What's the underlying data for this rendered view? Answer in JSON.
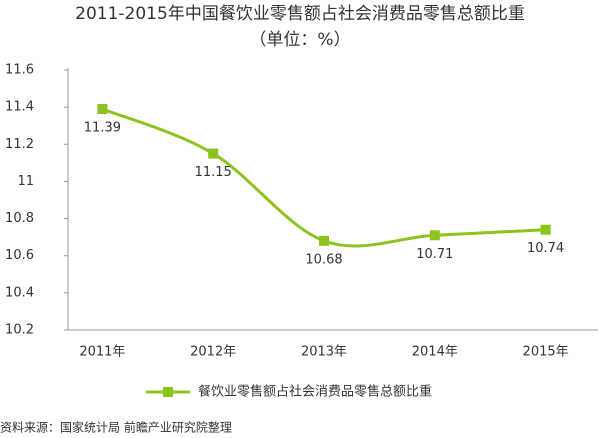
{
  "chart_data": {
    "type": "line",
    "title": "2011-2015年中国餐饮业零售额占社会消费品零售总额比重",
    "subtitle": "（单位：%）",
    "categories": [
      "2011年",
      "2012年",
      "2013年",
      "2014年",
      "2015年"
    ],
    "series": [
      {
        "name": "餐饮业零售额占社会消费品零售总额比重",
        "color": "#8dc21f",
        "values": [
          11.39,
          11.15,
          10.68,
          10.71,
          10.74
        ]
      }
    ],
    "ylim": [
      10.2,
      11.6
    ],
    "yticks": [
      10.2,
      10.4,
      10.6,
      10.8,
      11,
      11.2,
      11.4,
      11.6
    ],
    "grid": false,
    "legend": "bottom",
    "source": "资料来源：国家统计局 前瞻产业研究院整理"
  }
}
